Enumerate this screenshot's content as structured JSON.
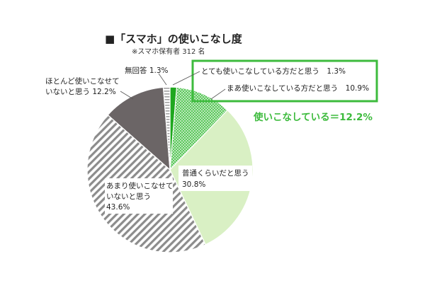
{
  "chart_data": {
    "type": "pie",
    "title": "■「スマホ」の使いこなし度",
    "subtitle": "※スマホ保有者 312 名",
    "slices": [
      {
        "label": "とても使いこなしている方だと思う",
        "value": 1.3,
        "value_label": "1.3%",
        "color": "#1fa81f",
        "pattern": "solid"
      },
      {
        "label": "まあ使いこなしている方だと思う",
        "value": 10.9,
        "value_label": "10.9%",
        "color": "#5cc85c",
        "pattern": "dots"
      },
      {
        "label": "普通くらいだと思う",
        "value": 30.8,
        "value_label": "30.8%",
        "color": "#d9f0c4",
        "pattern": "solid"
      },
      {
        "label": "あまり使いこなせていないと思う",
        "value": 43.6,
        "value_label": "43.6%",
        "color": "#8c8c8c",
        "pattern": "stripes"
      },
      {
        "label": "ほとんど使いこなせていないと思う",
        "value": 12.2,
        "value_label": "12.2%",
        "color": "#6b6566",
        "pattern": "solid"
      },
      {
        "label": "無回答",
        "value": 1.3,
        "value_label": "1.3%",
        "color": "#b0b0b0",
        "pattern": "stripes-light"
      }
    ],
    "annotation": {
      "text": "使いこなしている＝12.2%",
      "color": "#3dbb3d"
    },
    "label_text": {
      "very": "とても使いこなしている方だと思う　1.3%",
      "somewhat": "まあ使いこなしている方だと思う　10.9%",
      "normal_1": "普通くらいだと思う",
      "normal_2": "30.8%",
      "notmuch_1": "あまり使いこなせて",
      "notmuch_2": "いないと思う",
      "notmuch_3": "43.6%",
      "hardly_1": "ほとんど使いこなせて",
      "hardly_2": "いないと思う 12.2%",
      "noanswer": "無回答 1.3%"
    }
  }
}
